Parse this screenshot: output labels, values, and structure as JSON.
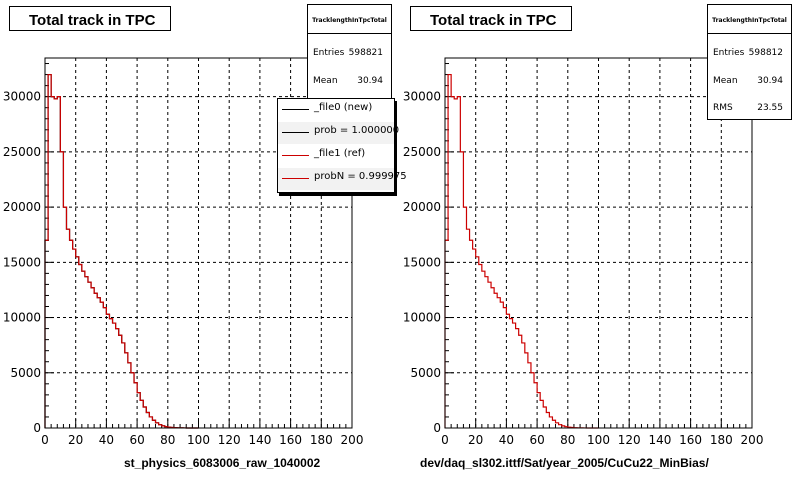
{
  "colors": {
    "new": "#000000",
    "ref": "#cc0000",
    "grid": "#000000",
    "frame": "#000000"
  },
  "panels": [
    {
      "title": "Total track in TPC",
      "xcaption": "st_physics_6083006_raw_1040002",
      "stats": {
        "name": "TracklengthInTpcTotal",
        "rows": [
          {
            "label": "Entries",
            "value": "598821"
          },
          {
            "label": "Mean",
            "value": "30.94"
          }
        ]
      },
      "legend": [
        {
          "text": "_file0 (new)",
          "color": "#000000",
          "shade": false
        },
        {
          "text": "prob = 1.000000",
          "color": "#000000",
          "shade": true
        },
        {
          "text": "_file1 (ref)",
          "color": "#cc0000",
          "shade": false
        },
        {
          "text": "probN = 0.999975",
          "color": "#cc0000",
          "shade": true
        }
      ]
    },
    {
      "title": "Total track in TPC",
      "xcaption": "dev/daq_sl302.ittf/Sat/year_2005/CuCu22_MinBias/",
      "stats": {
        "name": "TracklengthInTpcTotal",
        "rows": [
          {
            "label": "Entries",
            "value": "598812"
          },
          {
            "label": "Mean",
            "value": "30.94"
          },
          {
            "label": "RMS",
            "value": "23.55"
          }
        ]
      },
      "legend": []
    }
  ],
  "chart_data": [
    {
      "type": "histogram",
      "title": "Total track in TPC",
      "xlabel": "st_physics_6083006_raw_1040002",
      "ylabel": "",
      "xlim": [
        0,
        200
      ],
      "ylim": [
        0,
        33500
      ],
      "x_ticks": [
        0,
        20,
        40,
        60,
        80,
        100,
        120,
        140,
        160,
        180,
        200
      ],
      "y_ticks": [
        0,
        5000,
        10000,
        15000,
        20000,
        25000,
        30000
      ],
      "grid": true,
      "legend_position": "top-right",
      "bin_width": 2,
      "series": [
        {
          "name": "_file0 (new)",
          "color": "#000000",
          "values": [
            17000,
            32000,
            30000,
            29800,
            30000,
            25000,
            20000,
            18000,
            17000,
            16200,
            15500,
            14800,
            14200,
            13700,
            13200,
            12700,
            12200,
            11800,
            11400,
            10900,
            10300,
            9900,
            9500,
            9000,
            8400,
            7700,
            6800,
            5900,
            5000,
            4100,
            3200,
            2500,
            1900,
            1400,
            1000,
            700,
            470,
            300,
            190,
            120,
            75,
            45,
            28,
            17,
            10,
            6,
            3,
            2,
            1,
            0
          ]
        },
        {
          "name": "_file1 (ref)",
          "color": "#cc0000",
          "values": [
            17000,
            32000,
            30000,
            29800,
            30000,
            25000,
            20000,
            18000,
            17000,
            16200,
            15500,
            14800,
            14200,
            13700,
            13200,
            12700,
            12200,
            11800,
            11400,
            10900,
            10300,
            9900,
            9500,
            9000,
            8400,
            7700,
            6800,
            5900,
            5000,
            4100,
            3200,
            2500,
            1900,
            1400,
            1000,
            700,
            470,
            300,
            190,
            120,
            75,
            45,
            28,
            17,
            10,
            6,
            3,
            2,
            1,
            0
          ]
        }
      ]
    },
    {
      "type": "histogram",
      "title": "Total track in TPC",
      "xlabel": "dev/daq_sl302.ittf/Sat/year_2005/CuCu22_MinBias/",
      "ylabel": "",
      "xlim": [
        0,
        200
      ],
      "ylim": [
        0,
        33500
      ],
      "x_ticks": [
        0,
        20,
        40,
        60,
        80,
        100,
        120,
        140,
        160,
        180,
        200
      ],
      "y_ticks": [
        0,
        5000,
        10000,
        15000,
        20000,
        25000,
        30000
      ],
      "grid": true,
      "bin_width": 2,
      "series": [
        {
          "color": "#cc0000",
          "values": [
            17000,
            32000,
            30000,
            29800,
            30000,
            25000,
            20000,
            18000,
            17000,
            16200,
            15500,
            14800,
            14200,
            13700,
            13200,
            12700,
            12200,
            11800,
            11400,
            10900,
            10300,
            9900,
            9500,
            9000,
            8400,
            7700,
            6800,
            5900,
            5000,
            4100,
            3200,
            2500,
            1900,
            1400,
            1000,
            700,
            470,
            300,
            190,
            120,
            75,
            45,
            28,
            17,
            10,
            6,
            3,
            2,
            1,
            0
          ]
        }
      ]
    }
  ]
}
